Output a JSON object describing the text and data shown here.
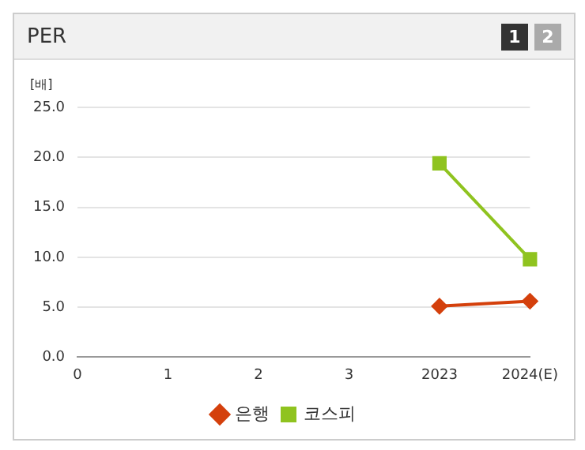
{
  "chart_data": {
    "type": "line",
    "title": "PER",
    "ylabel": "[배]",
    "annotations": [
      "1",
      "2"
    ],
    "categories": [
      "0",
      "1",
      "2",
      "3",
      "2023",
      "2024(E)"
    ],
    "series": [
      {
        "name": "은행",
        "color": "#d4400c",
        "marker": "diamond",
        "values": [
          null,
          null,
          null,
          null,
          5.1,
          5.6
        ]
      },
      {
        "name": "코스피",
        "color": "#8fc31f",
        "marker": "square",
        "values": [
          null,
          null,
          null,
          null,
          19.4,
          9.8
        ]
      }
    ],
    "ylim": [
      0,
      25
    ],
    "yticks": [
      {
        "value": 0,
        "label": "0.0"
      },
      {
        "value": 5,
        "label": "5.0"
      },
      {
        "value": 10,
        "label": "10.0"
      },
      {
        "value": 15,
        "label": "15.0"
      },
      {
        "value": 20,
        "label": "20.0"
      },
      {
        "value": 25,
        "label": "25.0"
      }
    ],
    "grid": "y",
    "legend": "bottom"
  }
}
